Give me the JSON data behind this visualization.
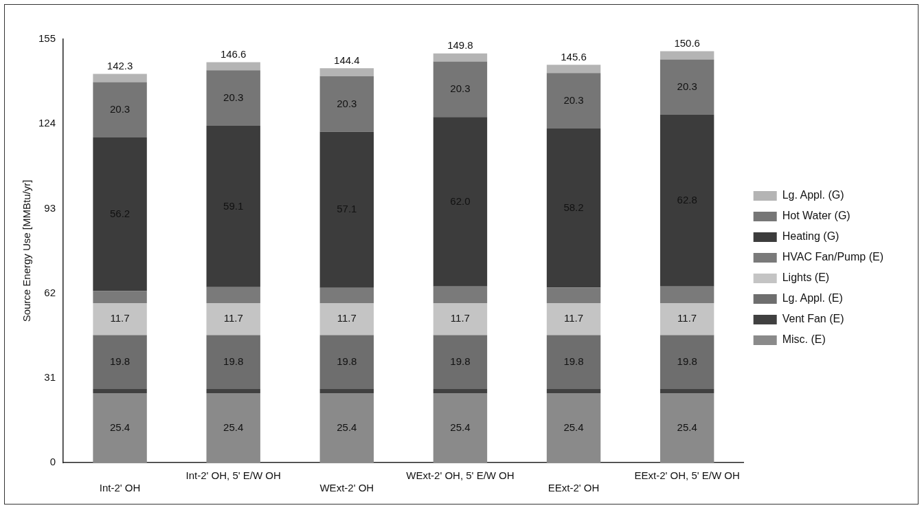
{
  "chart_data": {
    "type": "bar",
    "stacked": true,
    "ylabel": "Source Energy Use [MMBtu/yr]",
    "categories": [
      "Int-2' OH",
      "Int-2' OH, 5' E/W OH",
      "WExt-2' OH",
      "WExt-2' OH, 5' E/W OH",
      "EExt-2' OH",
      "EExt-2' OH, 5' E/W OH"
    ],
    "ylim": [
      0,
      155
    ],
    "yticks": [
      0,
      31,
      62,
      93,
      124,
      155
    ],
    "grid": false,
    "legend": "right",
    "series": [
      {
        "name": "Misc. (E)",
        "color": "#8a8a8a",
        "values": [
          25.4,
          25.4,
          25.4,
          25.4,
          25.4,
          25.4
        ],
        "value_labels": [
          "25.4",
          "25.4",
          "25.4",
          "25.4",
          "25.4",
          "25.4"
        ]
      },
      {
        "name": "Vent Fan (E)",
        "color": "#404040",
        "values": [
          1.5,
          1.5,
          1.5,
          1.5,
          1.5,
          1.5
        ]
      },
      {
        "name": "Lg. Appl. (E)",
        "color": "#6e6e6e",
        "values": [
          19.8,
          19.8,
          19.8,
          19.8,
          19.8,
          19.8
        ],
        "value_labels": [
          "19.8",
          "19.8",
          "19.8",
          "19.8",
          "19.8",
          "19.8"
        ]
      },
      {
        "name": "Lights (E)",
        "color": "#c4c4c4",
        "values": [
          11.7,
          11.7,
          11.7,
          11.7,
          11.7,
          11.7
        ],
        "value_labels": [
          "11.7",
          "11.7",
          "11.7",
          "11.7",
          "11.7",
          "11.7"
        ]
      },
      {
        "name": "HVAC Fan/Pump (E)",
        "color": "#7a7a7a",
        "values": [
          4.4,
          5.8,
          5.6,
          6.1,
          5.7,
          6.1
        ]
      },
      {
        "name": "Heating (G)",
        "color": "#3c3c3c",
        "values": [
          56.2,
          59.1,
          57.1,
          62.0,
          58.2,
          62.8
        ],
        "value_labels": [
          "56.2",
          "59.1",
          "57.1",
          "62.0",
          "58.2",
          "62.8"
        ]
      },
      {
        "name": "Hot Water (G)",
        "color": "#767676",
        "values": [
          20.3,
          20.3,
          20.3,
          20.3,
          20.3,
          20.3
        ],
        "value_labels": [
          "20.3",
          "20.3",
          "20.3",
          "20.3",
          "20.3",
          "20.3"
        ]
      },
      {
        "name": "Lg. Appl. (G)",
        "color": "#b4b4b4",
        "values": [
          3,
          3,
          3,
          3,
          3,
          3
        ]
      }
    ],
    "totals": [
      "142.3",
      "146.6",
      "144.4",
      "149.8",
      "145.6",
      "150.6"
    ]
  }
}
